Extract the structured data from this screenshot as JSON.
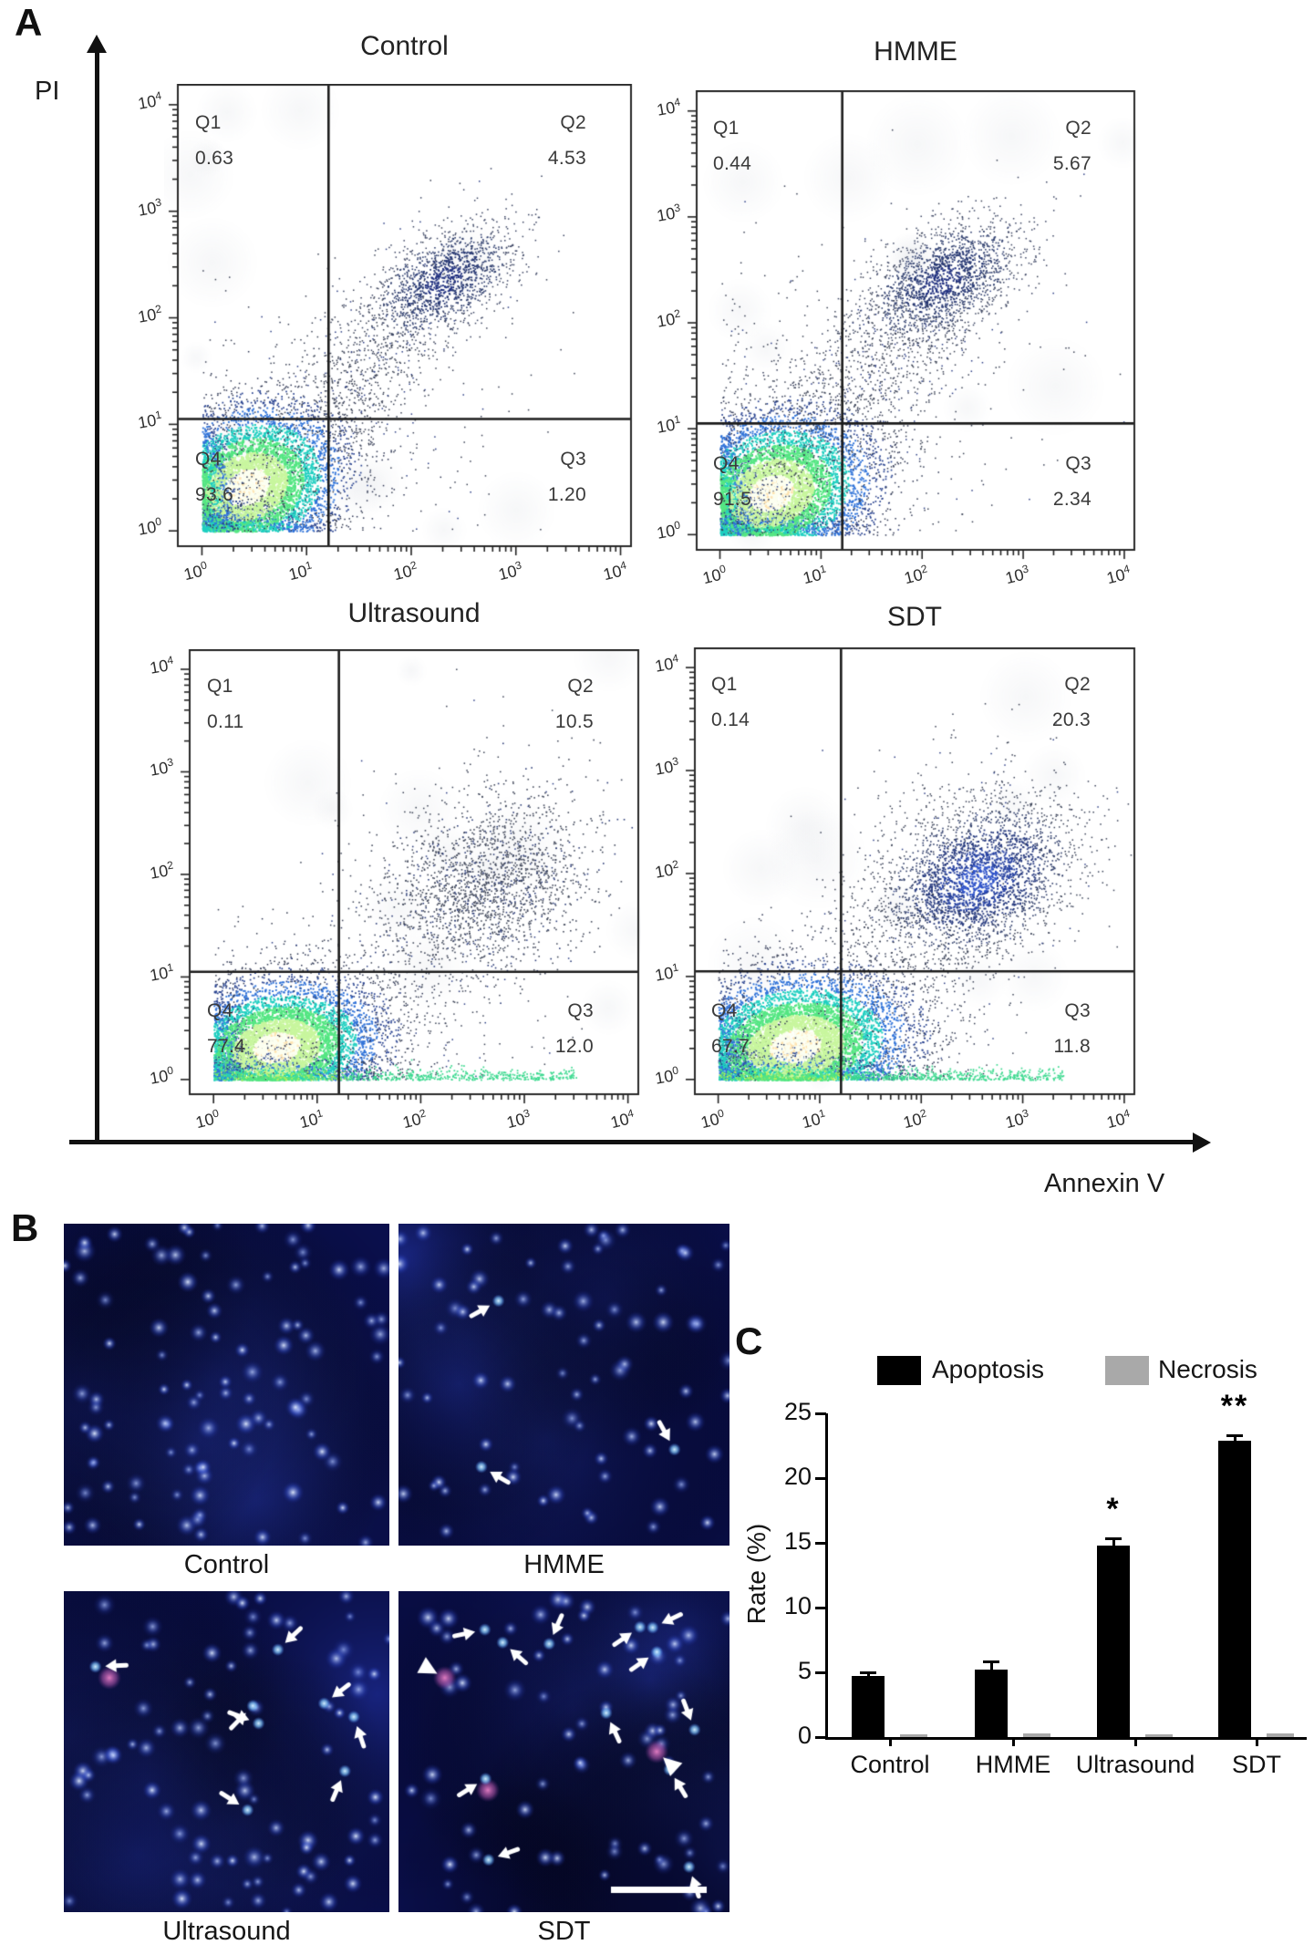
{
  "figure": {
    "panel_a_label": "A",
    "panel_b_label": "B",
    "panel_c_label": "C",
    "pi_label": "PI",
    "annexin_label": "Annexin V"
  },
  "chart_data": [
    {
      "type": "scatter",
      "panel": "A",
      "title": "Control",
      "xlabel": "Annexin V",
      "ylabel": "PI",
      "xscale": "log",
      "yscale": "log",
      "xlim": [
        1,
        10000
      ],
      "ylim": [
        1,
        10000
      ],
      "tick_exponents": [
        0,
        1,
        2,
        3,
        4
      ],
      "quadrants": {
        "q1_label": "Q1",
        "q1": "0.63",
        "q2_label": "Q2",
        "q2": "4.53",
        "q3_label": "Q3",
        "q3": "1.20",
        "q4_label": "Q4",
        "q4": "93.6"
      },
      "gates": {
        "x_log": 1.21,
        "y_log": 1.05
      },
      "populations": [
        {
          "kind": "heat",
          "cx": 0.42,
          "cy": 0.42,
          "sx": 0.46,
          "sy": 0.38,
          "corr": 0.2,
          "n": 6000
        },
        {
          "kind": "sparse",
          "cx": 1.45,
          "cy": 1.4,
          "sx": 0.55,
          "sy": 0.6,
          "corr": 0.75,
          "n": 900
        },
        {
          "kind": "navy",
          "cx": 2.3,
          "cy": 2.35,
          "sx": 0.36,
          "sy": 0.28,
          "corr": 0.5,
          "n": 1300
        },
        {
          "kind": "sparse",
          "cx": 1.1,
          "cy": 0.95,
          "sx": 0.95,
          "sy": 0.85,
          "corr": 0.3,
          "n": 400
        }
      ]
    },
    {
      "type": "scatter",
      "panel": "A",
      "title": "HMME",
      "xlabel": "Annexin V",
      "ylabel": "PI",
      "xscale": "log",
      "yscale": "log",
      "xlim": [
        1,
        10000
      ],
      "ylim": [
        1,
        10000
      ],
      "tick_exponents": [
        0,
        1,
        2,
        3,
        4
      ],
      "quadrants": {
        "q1_label": "Q1",
        "q1": "0.44",
        "q2_label": "Q2",
        "q2": "5.67",
        "q3_label": "Q3",
        "q3": "2.34",
        "q4_label": "Q4",
        "q4": "91.5"
      },
      "gates": {
        "x_log": 1.21,
        "y_log": 1.05
      },
      "populations": [
        {
          "kind": "heat",
          "cx": 0.5,
          "cy": 0.4,
          "sx": 0.5,
          "sy": 0.38,
          "corr": 0.2,
          "n": 6200
        },
        {
          "kind": "sparse",
          "cx": 1.5,
          "cy": 1.5,
          "sx": 0.6,
          "sy": 0.6,
          "corr": 0.7,
          "n": 1000
        },
        {
          "kind": "navy",
          "cx": 2.2,
          "cy": 2.4,
          "sx": 0.4,
          "sy": 0.3,
          "corr": 0.5,
          "n": 1600
        },
        {
          "kind": "sparse",
          "cx": 1.0,
          "cy": 1.1,
          "sx": 1.0,
          "sy": 0.9,
          "corr": 0.2,
          "n": 550
        }
      ]
    },
    {
      "type": "scatter",
      "panel": "A",
      "title": "Ultrasound",
      "xlabel": "Annexin V",
      "ylabel": "PI",
      "xscale": "log",
      "yscale": "log",
      "xlim": [
        1,
        10000
      ],
      "ylim": [
        1,
        10000
      ],
      "tick_exponents": [
        0,
        1,
        2,
        3,
        4
      ],
      "quadrants": {
        "q1_label": "Q1",
        "q1": "0.11",
        "q2_label": "Q2",
        "q2": "10.5",
        "q3_label": "Q3",
        "q3": "12.0",
        "q4_label": "Q4",
        "q4": "77.4"
      },
      "gates": {
        "x_log": 1.21,
        "y_log": 1.05
      },
      "populations": [
        {
          "kind": "heat",
          "cx": 0.6,
          "cy": 0.32,
          "sx": 0.5,
          "sy": 0.33,
          "corr": 0.15,
          "n": 6500
        },
        {
          "kind": "sparse2",
          "cx": 2.65,
          "cy": 1.9,
          "sx": 0.5,
          "sy": 0.4,
          "corr": 0.25,
          "n": 1900
        },
        {
          "kind": "sparse",
          "cx": 1.7,
          "cy": 0.85,
          "sx": 0.8,
          "sy": 0.6,
          "corr": 0.3,
          "n": 600
        },
        {
          "kind": "smear",
          "len": 3.5,
          "n": 700
        },
        {
          "kind": "sparse",
          "cx": 2.3,
          "cy": 2.6,
          "sx": 0.6,
          "sy": 0.5,
          "corr": 0.2,
          "n": 130
        }
      ]
    },
    {
      "type": "scatter",
      "panel": "A",
      "title": "SDT",
      "xlabel": "Annexin V",
      "ylabel": "PI",
      "xscale": "log",
      "yscale": "log",
      "xlim": [
        1,
        10000
      ],
      "ylim": [
        1,
        10000
      ],
      "tick_exponents": [
        0,
        1,
        2,
        3,
        4
      ],
      "quadrants": {
        "q1_label": "Q1",
        "q1": "0.14",
        "q2_label": "Q2",
        "q2": "20.3",
        "q3_label": "Q3",
        "q3": "11.8",
        "q4_label": "Q4",
        "q4": "67.7"
      },
      "gates": {
        "x_log": 1.21,
        "y_log": 1.05
      },
      "populations": [
        {
          "kind": "heat",
          "cx": 0.75,
          "cy": 0.33,
          "sx": 0.56,
          "sy": 0.36,
          "corr": 0.15,
          "n": 7000
        },
        {
          "kind": "navy2",
          "cx": 2.55,
          "cy": 1.95,
          "sx": 0.48,
          "sy": 0.38,
          "corr": 0.3,
          "n": 2600
        },
        {
          "kind": "sparse",
          "cx": 1.8,
          "cy": 1.1,
          "sx": 0.7,
          "sy": 0.8,
          "corr": 0.4,
          "n": 800
        },
        {
          "kind": "smear",
          "len": 3.4,
          "n": 800
        },
        {
          "kind": "sparse",
          "cx": 2.4,
          "cy": 2.7,
          "sx": 0.5,
          "sy": 0.4,
          "corr": 0.2,
          "n": 110
        }
      ]
    },
    {
      "type": "bar",
      "panel": "C",
      "categories": [
        "Control",
        "HMME",
        "Ultrasound",
        "SDT"
      ],
      "series": [
        {
          "name": "Apoptosis",
          "color": "#000000",
          "values": [
            4.7,
            5.2,
            14.8,
            22.9
          ],
          "errors": [
            0.4,
            0.7,
            0.6,
            0.5
          ],
          "annotations": [
            "",
            "",
            "*",
            "**"
          ]
        },
        {
          "name": "Necrosis",
          "color": "#a9a9a9",
          "values": [
            0.2,
            0.3,
            0.2,
            0.3
          ],
          "errors": [
            0,
            0,
            0,
            0
          ],
          "annotations": [
            "",
            "",
            "",
            ""
          ]
        }
      ],
      "ylabel": "Rate (%)",
      "ylim": [
        0,
        25
      ],
      "yticks": [
        0,
        5,
        10,
        15,
        20,
        25
      ],
      "legend_position": "top",
      "grid": false
    }
  ],
  "panel_b": {
    "images": [
      {
        "label": "Control",
        "arrows": 0,
        "arrowheads": 0,
        "pink_cells": 0,
        "nuclei": 100,
        "scale_bar": false,
        "dark_corner": false
      },
      {
        "label": "HMME",
        "arrows": 3,
        "arrowheads": 0,
        "pink_cells": 0,
        "nuclei": 74,
        "scale_bar": false,
        "dark_corner": false
      },
      {
        "label": "Ultrasound",
        "arrows": 8,
        "arrowheads": 0,
        "pink_cells": 1,
        "nuclei": 80,
        "scale_bar": false,
        "dark_corner": false
      },
      {
        "label": "SDT",
        "arrows": 12,
        "arrowheads": 2,
        "pink_cells": 3,
        "nuclei": 68,
        "scale_bar": true,
        "dark_corner": true
      }
    ]
  }
}
